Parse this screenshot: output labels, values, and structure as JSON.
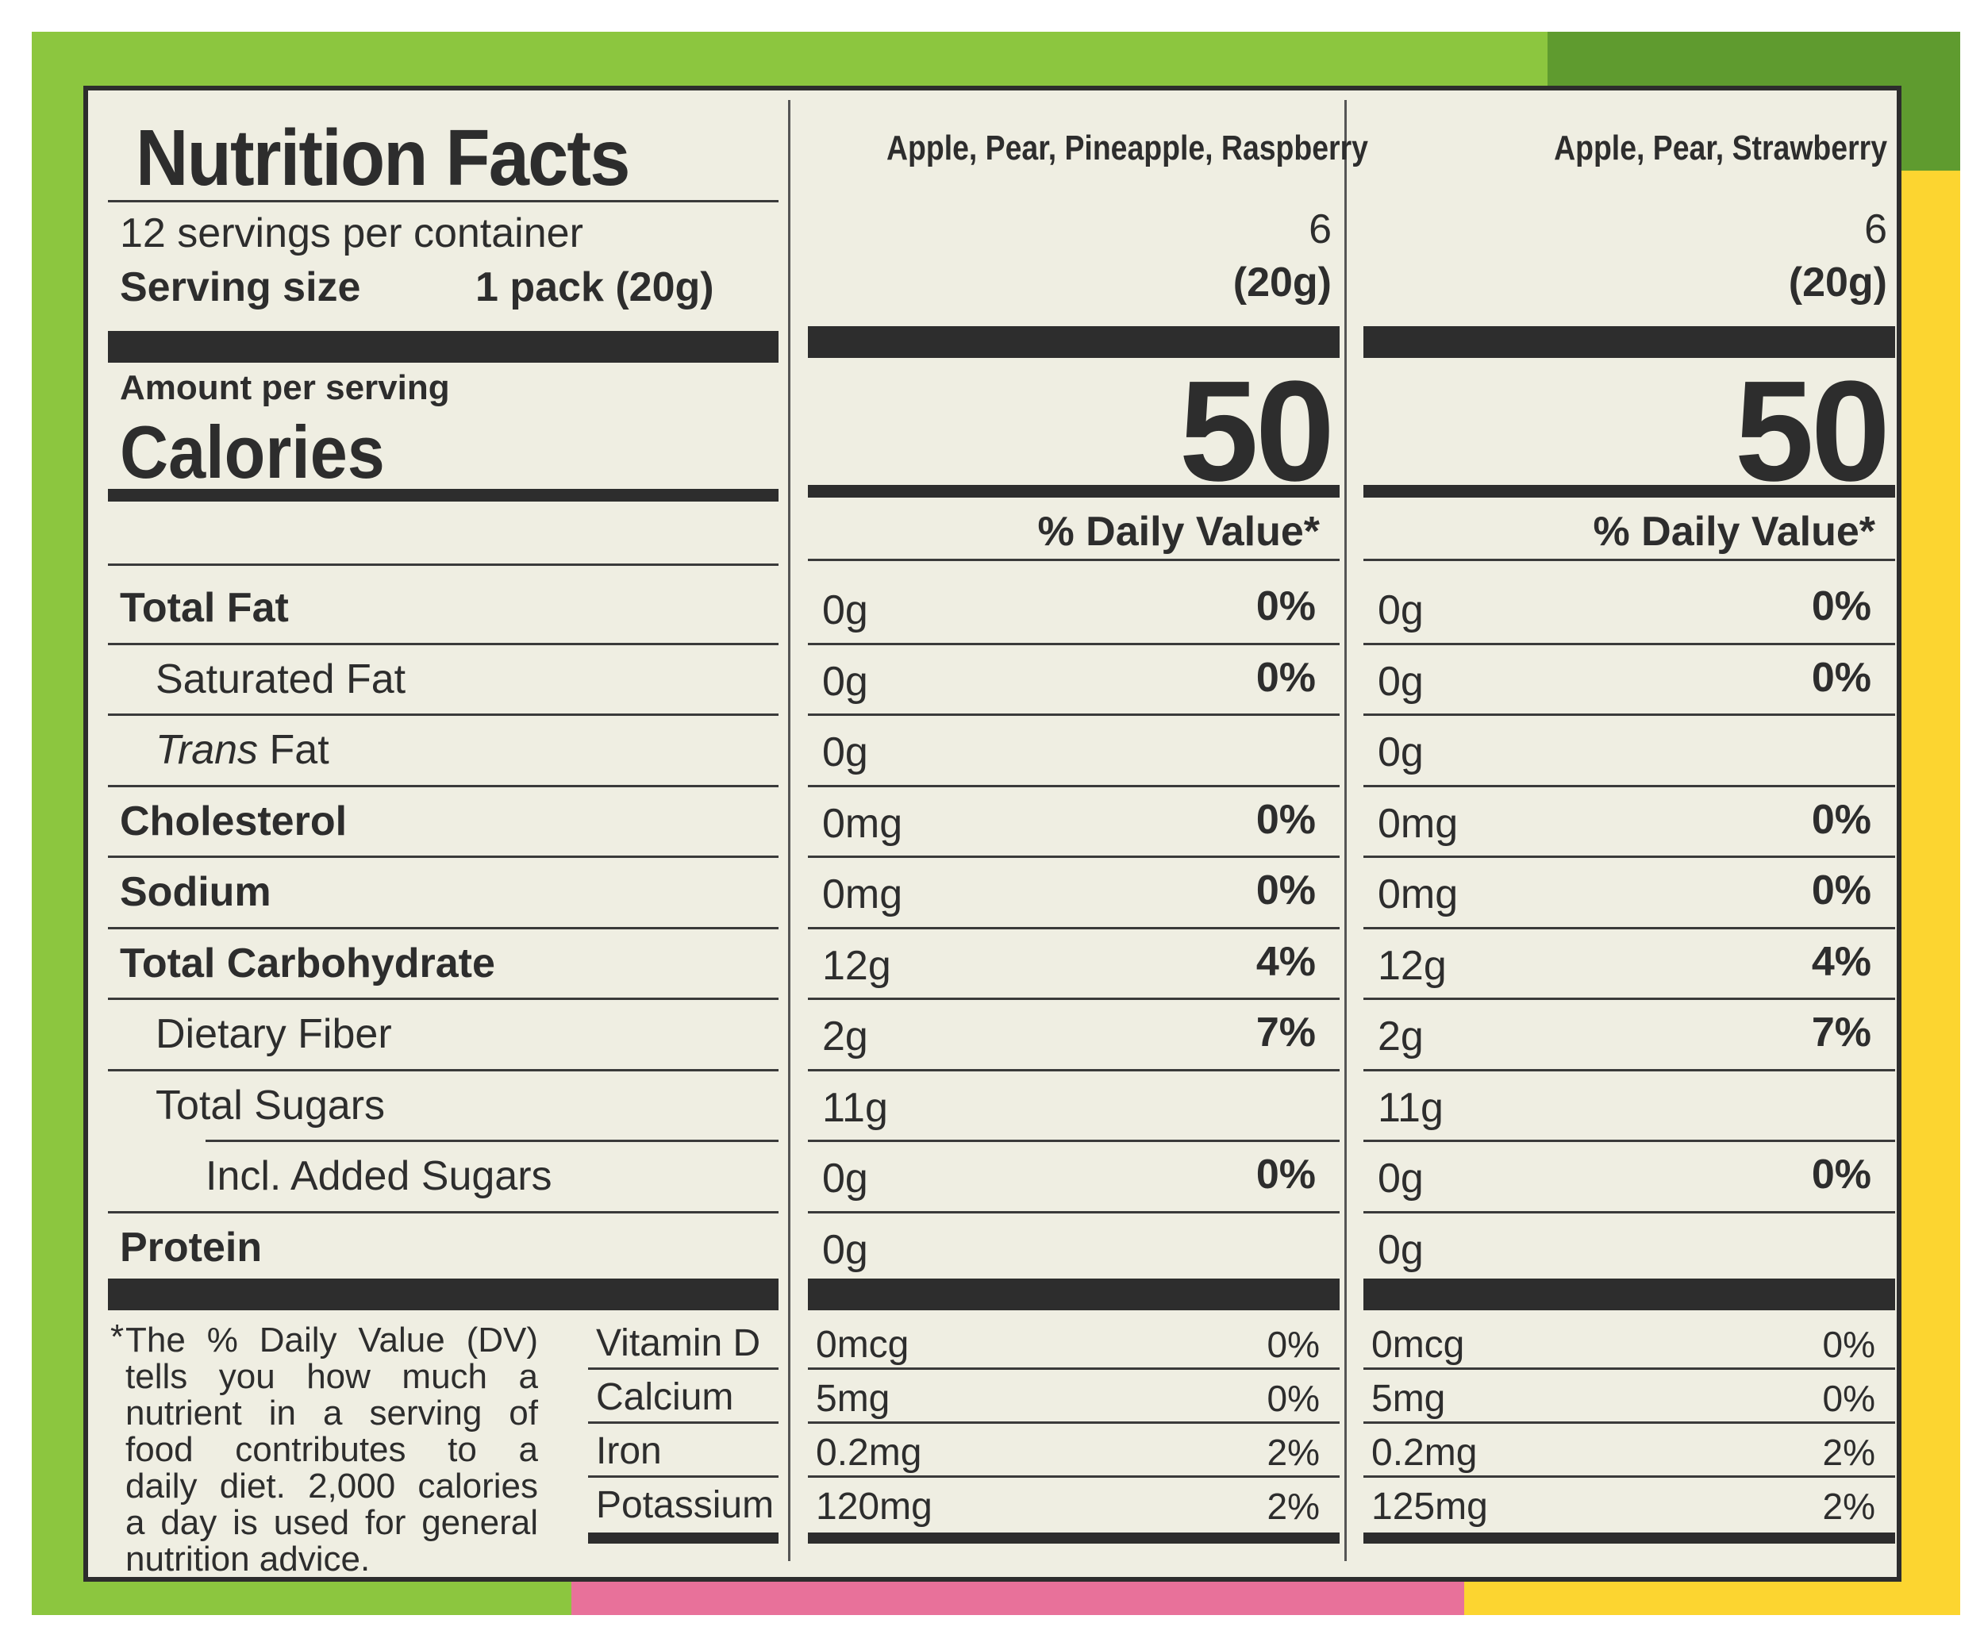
{
  "label": {
    "title": "Nutrition Facts",
    "servings": "12 servings per container",
    "serving_size_label": "Serving size",
    "serving_size_value": "1 pack (20g)",
    "amount_per_serving": "Amount per serving",
    "calories_label": "Calories",
    "daily_value_header": "% Daily Value*"
  },
  "columns": [
    {
      "variety": "Apple, Pear, Pineapple, Raspberry",
      "servings": "6",
      "size": "(20g)",
      "calories": "50",
      "nutrients": [
        {
          "amount": "0g",
          "dv": "0%"
        },
        {
          "amount": "0g",
          "dv": "0%"
        },
        {
          "amount": "0g",
          "dv": ""
        },
        {
          "amount": "0mg",
          "dv": "0%"
        },
        {
          "amount": "0mg",
          "dv": "0%"
        },
        {
          "amount": "12g",
          "dv": "4%"
        },
        {
          "amount": "2g",
          "dv": "7%"
        },
        {
          "amount": "11g",
          "dv": ""
        },
        {
          "amount": "0g",
          "dv": "0%"
        },
        {
          "amount": "0g",
          "dv": ""
        }
      ],
      "vitamins": [
        {
          "amount": "0mcg",
          "dv": "0%"
        },
        {
          "amount": "5mg",
          "dv": "0%"
        },
        {
          "amount": "0.2mg",
          "dv": "2%"
        },
        {
          "amount": "120mg",
          "dv": "2%"
        }
      ]
    },
    {
      "variety": "Apple, Pear, Strawberry",
      "servings": "6",
      "size": "(20g)",
      "calories": "50",
      "nutrients": [
        {
          "amount": "0g",
          "dv": "0%"
        },
        {
          "amount": "0g",
          "dv": "0%"
        },
        {
          "amount": "0g",
          "dv": ""
        },
        {
          "amount": "0mg",
          "dv": "0%"
        },
        {
          "amount": "0mg",
          "dv": "0%"
        },
        {
          "amount": "12g",
          "dv": "4%"
        },
        {
          "amount": "2g",
          "dv": "7%"
        },
        {
          "amount": "11g",
          "dv": ""
        },
        {
          "amount": "0g",
          "dv": "0%"
        },
        {
          "amount": "0g",
          "dv": ""
        }
      ],
      "vitamins": [
        {
          "amount": "0mcg",
          "dv": "0%"
        },
        {
          "amount": "5mg",
          "dv": "0%"
        },
        {
          "amount": "0.2mg",
          "dv": "2%"
        },
        {
          "amount": "125mg",
          "dv": "2%"
        }
      ]
    }
  ],
  "nutrient_labels": [
    {
      "pre": "Total Fat",
      "italic": "",
      "post": ""
    },
    {
      "pre": "Saturated Fat",
      "italic": "",
      "post": ""
    },
    {
      "pre": "",
      "italic": "Trans",
      "post": " Fat"
    },
    {
      "pre": "Cholesterol",
      "italic": "",
      "post": ""
    },
    {
      "pre": "Sodium",
      "italic": "",
      "post": ""
    },
    {
      "pre": "Total Carbohydrate",
      "italic": "",
      "post": ""
    },
    {
      "pre": "Dietary Fiber",
      "italic": "",
      "post": ""
    },
    {
      "pre": "Total Sugars",
      "italic": "",
      "post": ""
    },
    {
      "pre": "Incl. Added Sugars",
      "italic": "",
      "post": ""
    },
    {
      "pre": "Protein",
      "italic": "",
      "post": ""
    }
  ],
  "vitamin_labels": [
    "Vitamin D",
    "Calcium",
    "Iron",
    "Potassium"
  ],
  "footnote": {
    "star": "*",
    "lines": [
      "The % Daily Value (DV)",
      "tells you how much a",
      "nutrient in a serving of",
      "food contributes to a",
      "daily diet. 2,000 calories",
      "a day is used for general",
      "nutrition advice."
    ]
  }
}
